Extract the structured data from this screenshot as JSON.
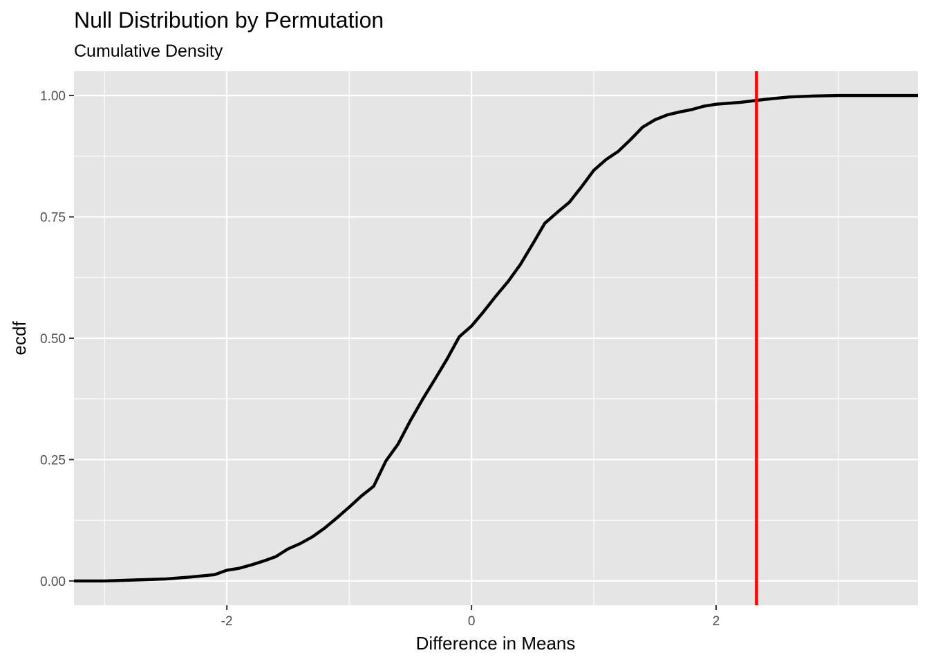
{
  "chart_data": {
    "type": "line",
    "title": "Null Distribution by Permutation",
    "subtitle": "Cumulative Density",
    "xlabel": "Difference in Means",
    "ylabel": "ecdf",
    "xlim": [
      -3.25,
      3.65
    ],
    "ylim": [
      -0.05,
      1.05
    ],
    "x_ticks": [
      -2,
      0,
      2
    ],
    "x_tick_labels": [
      "-2",
      "0",
      "2"
    ],
    "x_minor_ticks": [
      -3,
      -1,
      1,
      3
    ],
    "y_ticks": [
      0,
      0.25,
      0.5,
      0.75,
      1
    ],
    "y_tick_labels": [
      "0.00",
      "0.25",
      "0.50",
      "0.75",
      "1.00"
    ],
    "y_minor_ticks": [
      0.125,
      0.375,
      0.625,
      0.875
    ],
    "grid": true,
    "legend": "none",
    "series": [
      {
        "color": "#000000",
        "x": [
          -3.25,
          -3.0,
          -2.75,
          -2.5,
          -2.3,
          -2.1,
          -2.0,
          -1.9,
          -1.8,
          -1.7,
          -1.6,
          -1.5,
          -1.4,
          -1.3,
          -1.2,
          -1.1,
          -1.0,
          -0.9,
          -0.8,
          -0.7,
          -0.6,
          -0.5,
          -0.4,
          -0.3,
          -0.2,
          -0.1,
          0.0,
          0.1,
          0.2,
          0.3,
          0.4,
          0.5,
          0.6,
          0.7,
          0.8,
          0.9,
          1.0,
          1.1,
          1.2,
          1.3,
          1.4,
          1.5,
          1.6,
          1.7,
          1.8,
          1.9,
          2.0,
          2.2,
          2.4,
          2.6,
          2.8,
          3.0,
          3.2,
          3.65
        ],
        "y": [
          0.0,
          0.0,
          0.002,
          0.004,
          0.008,
          0.013,
          0.022,
          0.026,
          0.033,
          0.041,
          0.05,
          0.066,
          0.077,
          0.091,
          0.109,
          0.13,
          0.152,
          0.175,
          0.195,
          0.247,
          0.282,
          0.33,
          0.374,
          0.415,
          0.457,
          0.503,
          0.525,
          0.555,
          0.587,
          0.617,
          0.652,
          0.694,
          0.737,
          0.759,
          0.78,
          0.812,
          0.846,
          0.868,
          0.885,
          0.909,
          0.935,
          0.95,
          0.96,
          0.966,
          0.971,
          0.978,
          0.982,
          0.986,
          0.992,
          0.997,
          0.999,
          1.0,
          1.0,
          1.0
        ]
      }
    ],
    "vline": {
      "x": 2.33,
      "color": "#ff0000"
    }
  }
}
